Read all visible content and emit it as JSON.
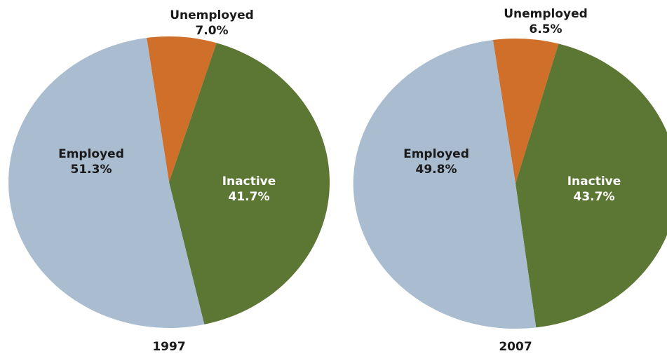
{
  "chart_data": [
    {
      "type": "pie",
      "title": "1997",
      "slices": [
        {
          "label": "Unemployed",
          "value_label": "7.0%",
          "value": 7.0,
          "color": "#cf6f2a"
        },
        {
          "label": "Inactive",
          "value_label": "41.7%",
          "value": 41.7,
          "color": "#5b7733"
        },
        {
          "label": "Employed",
          "value_label": "51.3%",
          "value": 51.3,
          "color": "#a9bcd0"
        }
      ]
    },
    {
      "type": "pie",
      "title": "2007",
      "slices": [
        {
          "label": "Unemployed",
          "value_label": "6.5%",
          "value": 6.5,
          "color": "#cf6f2a"
        },
        {
          "label": "Inactive",
          "value_label": "43.7%",
          "value": 43.7,
          "color": "#5b7733"
        },
        {
          "label": "Employed",
          "value_label": "49.8%",
          "value": 49.8,
          "color": "#a9bcd0"
        }
      ]
    }
  ]
}
